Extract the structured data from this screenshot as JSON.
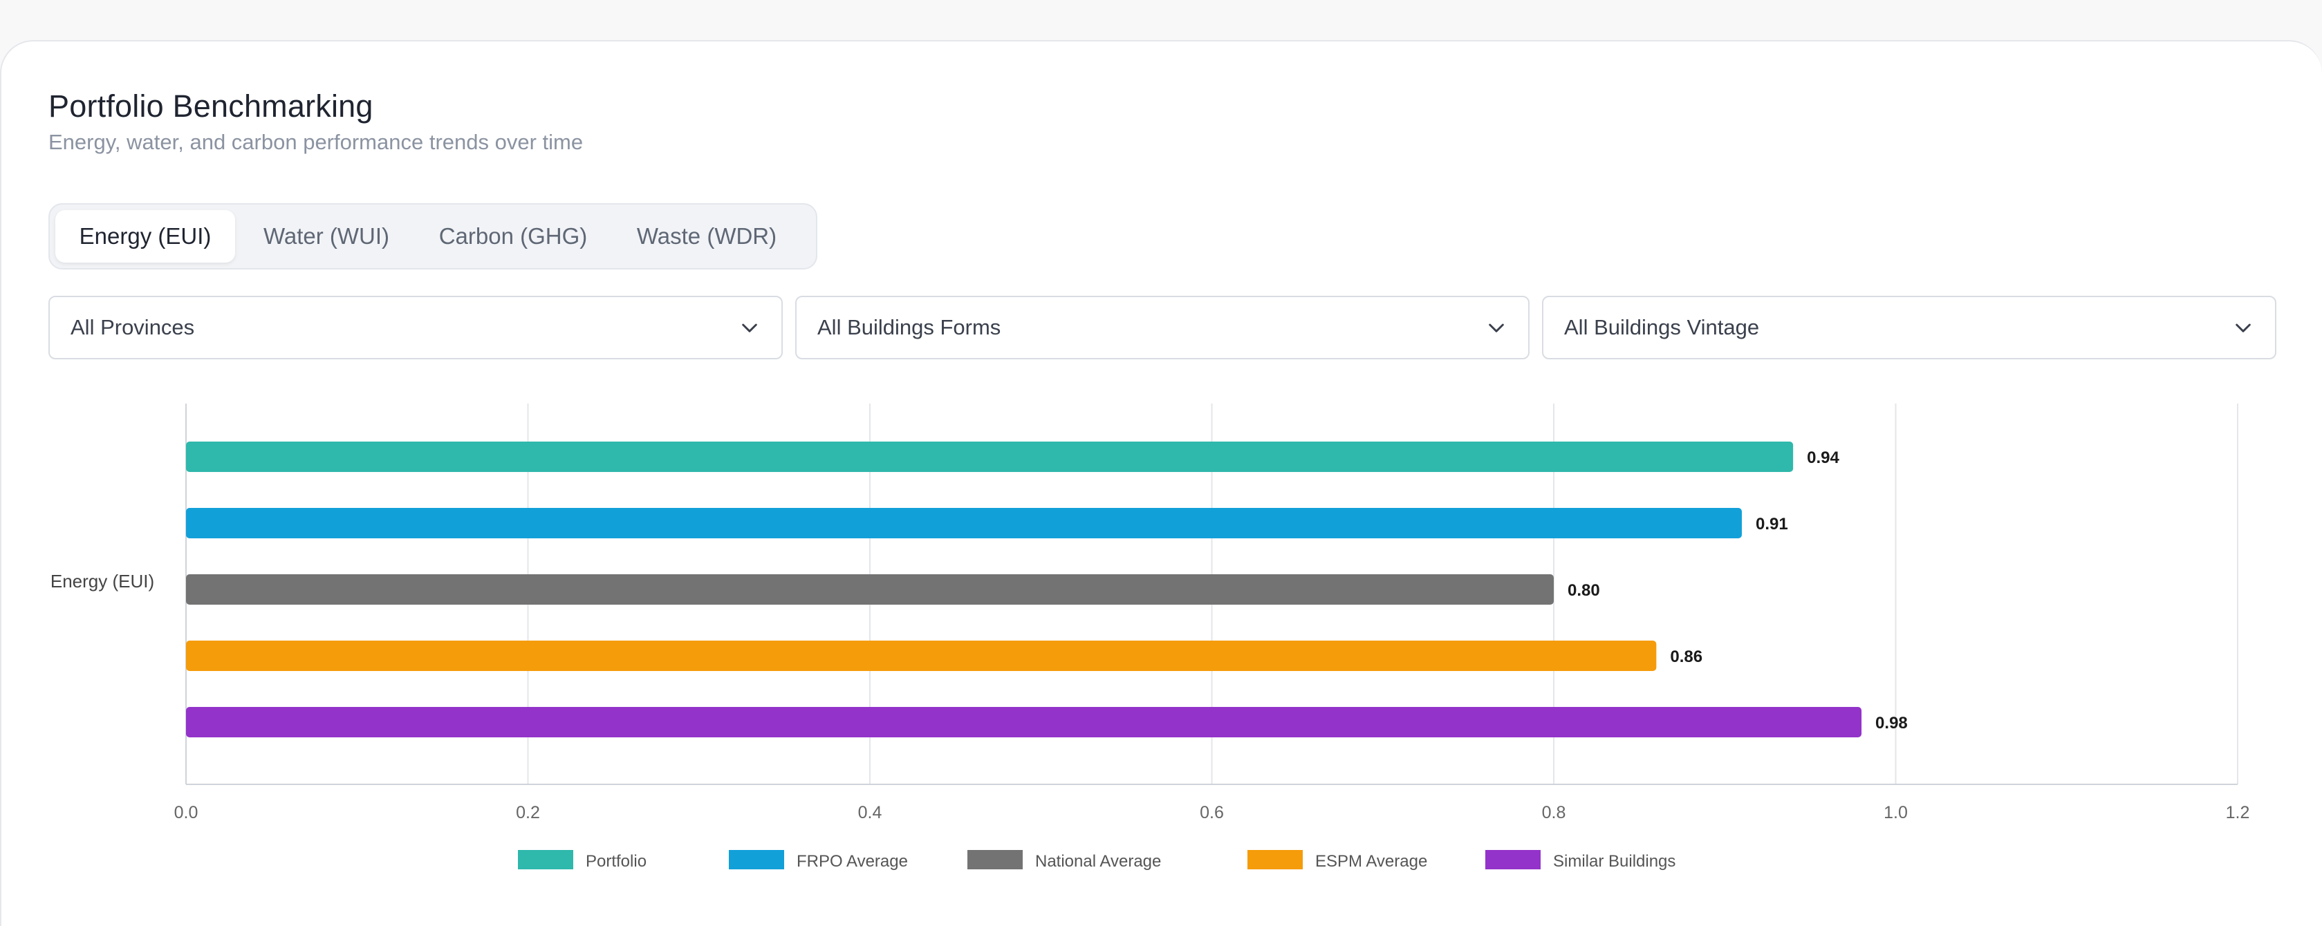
{
  "header": {
    "title": "Portfolio Benchmarking",
    "subtitle": "Energy, water, and carbon performance trends over time"
  },
  "tabs": [
    {
      "label": "Energy (EUI)",
      "active": true
    },
    {
      "label": "Water (WUI)",
      "active": false
    },
    {
      "label": "Carbon (GHG)",
      "active": false
    },
    {
      "label": "Waste (WDR)",
      "active": false
    }
  ],
  "filters": {
    "province": "All Provinces",
    "building_form": "All Buildings Forms",
    "building_vintage": "All Buildings Vintage"
  },
  "icons": {
    "dropdown": "chevron-down-icon"
  },
  "chart_data": {
    "type": "bar",
    "orientation": "horizontal",
    "categories": [
      "Energy (EUI)"
    ],
    "series": [
      {
        "name": "Portfolio",
        "value": 0.94,
        "label": "0.94",
        "color": "#2fb8ac"
      },
      {
        "name": "FRPO Average",
        "value": 0.91,
        "label": "0.91",
        "color": "#12a0d9"
      },
      {
        "name": "National Average",
        "value": 0.8,
        "label": "0.80",
        "color": "#737373"
      },
      {
        "name": "ESPM Average",
        "value": 0.86,
        "label": "0.86",
        "color": "#f59c0b"
      },
      {
        "name": "Similar Buildings",
        "value": 0.98,
        "label": "0.98",
        "color": "#9333ca"
      }
    ],
    "xlim": [
      0,
      1.2
    ],
    "xticks": [
      "0.0",
      "0.2",
      "0.4",
      "0.6",
      "0.8",
      "1.0",
      "1.2"
    ],
    "grid": true,
    "legend_position": "bottom"
  }
}
